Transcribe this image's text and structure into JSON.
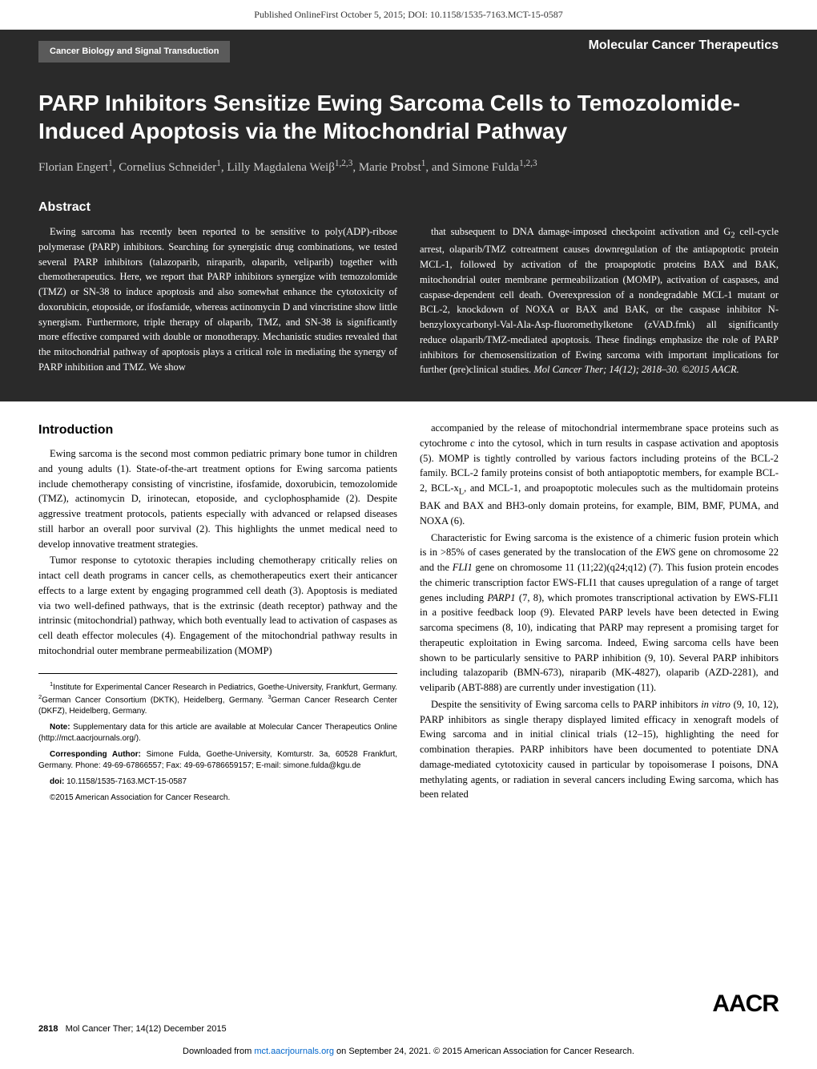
{
  "top_banner": "Published OnlineFirst October 5, 2015; DOI: 10.1158/1535-7163.MCT-15-0587",
  "category": "Cancer Biology and Signal Transduction",
  "journal": "Molecular Cancer Therapeutics",
  "title": "PARP Inhibitors Sensitize Ewing Sarcoma Cells to Temozolomide-Induced Apoptosis via the Mitochondrial Pathway",
  "authors_html": "Florian Engert<sup>1</sup>, Cornelius Schneider<sup>1</sup>, Lilly Magdalena Weiβ<sup>1,2,3</sup>, Marie Probst<sup>1</sup>, and Simone Fulda<sup>1,2,3</sup>",
  "abstract_heading": "Abstract",
  "abstract_left": "Ewing sarcoma has recently been reported to be sensitive to poly(ADP)-ribose polymerase (PARP) inhibitors. Searching for synergistic drug combinations, we tested several PARP inhibitors (talazoparib, niraparib, olaparib, veliparib) together with chemotherapeutics. Here, we report that PARP inhibitors synergize with temozolomide (TMZ) or SN-38 to induce apoptosis and also somewhat enhance the cytotoxicity of doxorubicin, etoposide, or ifosfamide, whereas actinomycin D and vincristine show little synergism. Furthermore, triple therapy of olaparib, TMZ, and SN-38 is significantly more effective compared with double or monotherapy. Mechanistic studies revealed that the mitochondrial pathway of apoptosis plays a critical role in mediating the synergy of PARP inhibition and TMZ. We show",
  "abstract_right_html": "that subsequent to DNA damage-imposed checkpoint activation and G<sub>2</sub> cell-cycle arrest, olaparib/TMZ cotreatment causes downregulation of the antiapoptotic protein MCL-1, followed by activation of the proapoptotic proteins BAX and BAK, mitochondrial outer membrane permeabilization (MOMP), activation of caspases, and caspase-dependent cell death. Overexpression of a nondegradable MCL-1 mutant or BCL-2, knockdown of NOXA or BAX and BAK, or the caspase inhibitor N-benzyloxycarbonyl-Val-Ala-Asp-fluoromethylketone (zVAD.fmk) all significantly reduce olaparib/TMZ-mediated apoptosis. These findings emphasize the role of PARP inhibitors for chemosensitization of Ewing sarcoma with important implications for further (pre)clinical studies. <span class=\"ital\">Mol Cancer Ther; 14(12); 2818–30. ©2015 AACR.</span>",
  "intro_heading": "Introduction",
  "intro_left_p1": "Ewing sarcoma is the second most common pediatric primary bone tumor in children and young adults (1). State-of-the-art treatment options for Ewing sarcoma patients include chemotherapy consisting of vincristine, ifosfamide, doxorubicin, temozolomide (TMZ), actinomycin D, irinotecan, etoposide, and cyclophosphamide (2). Despite aggressive treatment protocols, patients especially with advanced or relapsed diseases still harbor an overall poor survival (2). This highlights the unmet medical need to develop innovative treatment strategies.",
  "intro_left_p2": "Tumor response to cytotoxic therapies including chemotherapy critically relies on intact cell death programs in cancer cells, as chemotherapeutics exert their anticancer effects to a large extent by engaging programmed cell death (3). Apoptosis is mediated via two well-defined pathways, that is the extrinsic (death receptor) pathway and the intrinsic (mitochondrial) pathway, which both eventually lead to activation of caspases as cell death effector molecules (4). Engagement of the mitochondrial pathway results in mitochondrial outer membrane permeabilization (MOMP)",
  "intro_right_p1_html": "accompanied by the release of mitochondrial intermembrane space proteins such as cytochrome <span class=\"ital\">c</span> into the cytosol, which in turn results in caspase activation and apoptosis (5). MOMP is tightly controlled by various factors including proteins of the BCL-2 family. BCL-2 family proteins consist of both antiapoptotic members, for example BCL-2, BCL-x<sub>L</sub>, and MCL-1, and proapoptotic molecules such as the multidomain proteins BAK and BAX and BH3-only domain proteins, for example, BIM, BMF, PUMA, and NOXA (6).",
  "intro_right_p2_html": "Characteristic for Ewing sarcoma is the existence of a chimeric fusion protein which is in >85% of cases generated by the translocation of the <span class=\"ital\">EWS</span> gene on chromosome 22 and the <span class=\"ital\">FLI1</span> gene on chromosome 11 (11;22)(q24;q12) (7). This fusion protein encodes the chimeric transcription factor EWS-FLI1 that causes upregulation of a range of target genes including <span class=\"ital\">PARP1</span> (7, 8), which promotes transcriptional activation by EWS-FLI1 in a positive feedback loop (9). Elevated PARP levels have been detected in Ewing sarcoma specimens (8, 10), indicating that PARP may represent a promising target for therapeutic exploitation in Ewing sarcoma. Indeed, Ewing sarcoma cells have been shown to be particularly sensitive to PARP inhibition (9, 10). Several PARP inhibitors including talazoparib (BMN-673), niraparib (MK-4827), olaparib (AZD-2281), and veliparib (ABT-888) are currently under investigation (11).",
  "intro_right_p3_html": "Despite the sensitivity of Ewing sarcoma cells to PARP inhibitors <span class=\"ital\">in vitro</span> (9, 10, 12), PARP inhibitors as single therapy displayed limited efficacy in xenograft models of Ewing sarcoma and in initial clinical trials (12–15), highlighting the need for combination therapies. PARP inhibitors have been documented to potentiate DNA damage-mediated cytotoxicity caused in particular by topoisomerase I poisons, DNA methylating agents, or radiation in several cancers including Ewing sarcoma, which has been related",
  "footnotes": {
    "affil_html": "<sup>1</sup>Institute for Experimental Cancer Research in Pediatrics, Goethe-University, Frankfurt, Germany. <sup>2</sup>German Cancer Consortium (DKTK), Heidelberg, Germany. <sup>3</sup>German Cancer Research Center (DKFZ), Heidelberg, Germany.",
    "note_html": "<b>Note:</b> Supplementary data for this article are available at Molecular Cancer Therapeutics Online (http://mct.aacrjournals.org/).",
    "corr_html": "<b>Corresponding Author:</b> Simone Fulda, Goethe-University, Komturstr. 3a, 60528 Frankfurt, Germany. Phone: 49-69-67866557; Fax: 49-69-6786659157; E-mail: simone.fulda@kgu.de",
    "doi_html": "<b>doi:</b> 10.1158/1535-7163.MCT-15-0587",
    "copyright": "©2015 American Association for Cancer Research."
  },
  "footer": {
    "page_num": "2818",
    "issue": "Mol Cancer Ther; 14(12) December 2015",
    "logo": "AACR"
  },
  "download_html": "Downloaded from <a href=\"#\">mct.aacrjournals.org</a> on September 24, 2021. © 2015 American Association for Cancer Research."
}
